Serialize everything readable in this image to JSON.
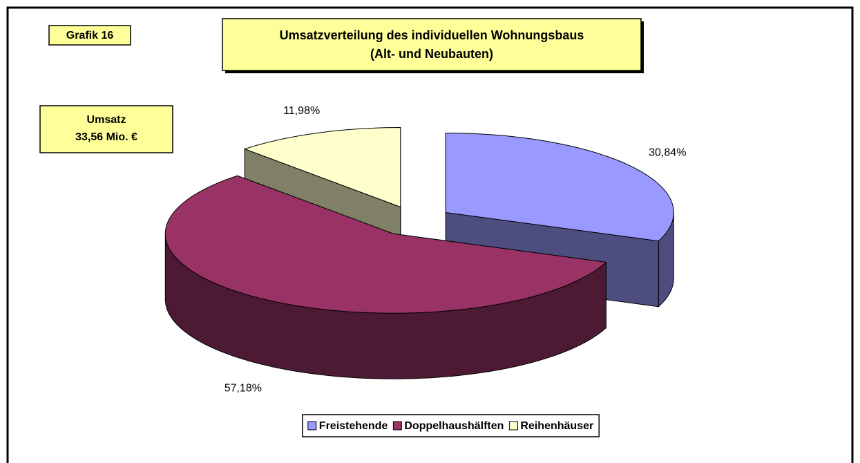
{
  "chart_data": {
    "type": "pie",
    "label": "Grafik 16",
    "title": [
      "Umsatzverteilung des individuellen Wohnungsbaus",
      "(Alt- und Neubauten)"
    ],
    "annotation": [
      "Umsatz",
      "33,56 Mio. €"
    ],
    "categories": [
      "Freistehende",
      "Doppelhaushälften",
      "Reihenhäuser"
    ],
    "values": [
      30.84,
      57.18,
      11.98
    ],
    "value_labels": [
      "30,84%",
      "57,18%",
      "11,98%"
    ],
    "colors": [
      "#9999ff",
      "#993366",
      "#ffffcc"
    ],
    "side_colors": [
      "#4d4d80",
      "#4d1a33",
      "#808066"
    ],
    "legend": "bottom"
  }
}
